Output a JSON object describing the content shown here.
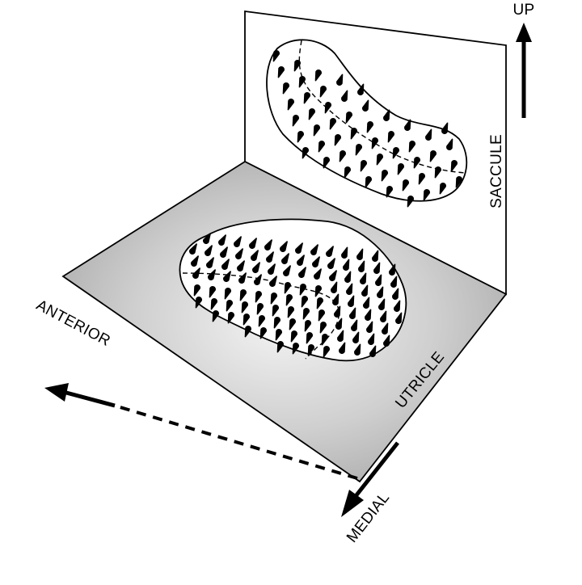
{
  "labels": {
    "up": "UP",
    "saccule": "SACCULE",
    "utricle": "UTRICLE",
    "anterior": "ANTERIOR",
    "medial": "MEDIAL"
  },
  "colors": {
    "line": "#000000",
    "plane_vertical": "#ffffff",
    "plane_horizontal_light": "#f2f2f2",
    "plane_horizontal_dark": "#a8a8a8"
  },
  "icons": {
    "up_arrow": "arrow-up-icon",
    "anterior_arrow": "arrow-anterior-icon",
    "medial_arrow": "arrow-medial-icon",
    "hair_cell": "hair-cell-icon"
  }
}
